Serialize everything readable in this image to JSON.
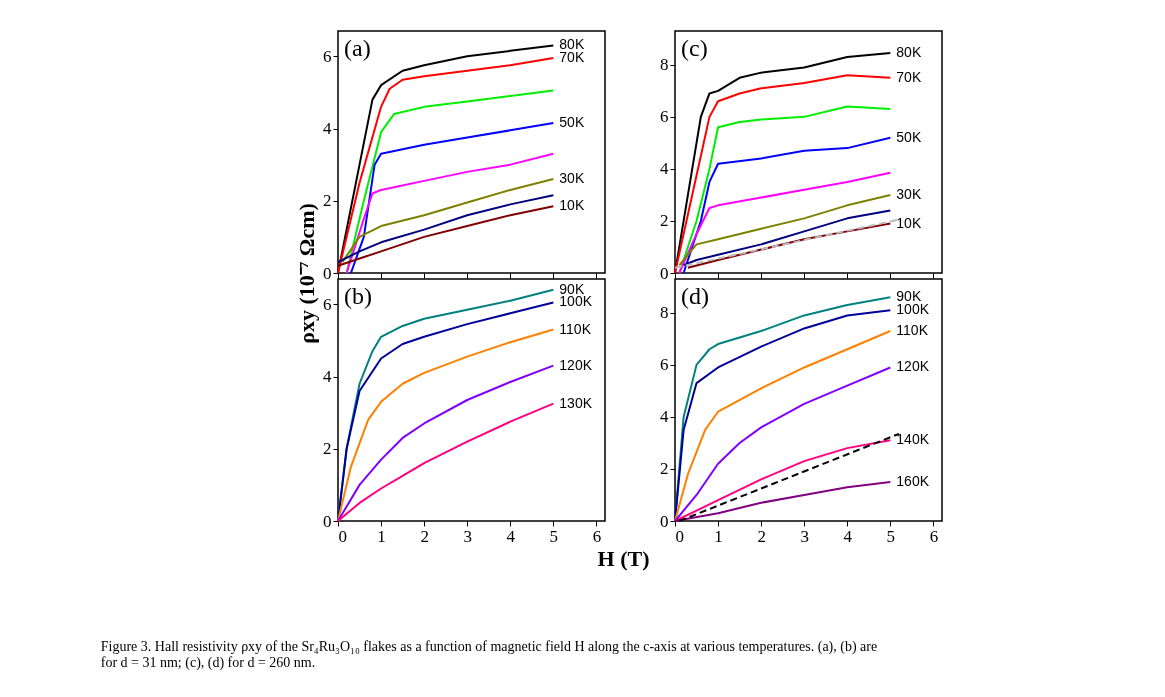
{
  "chart_data": [
    {
      "type": "line",
      "title": "(a)",
      "ylabel": "ρxy (10⁻⁷ Ωcm)",
      "xlim": [
        0,
        6.2
      ],
      "ylim": [
        0,
        6.7
      ],
      "xticks": [
        0,
        1,
        2,
        3,
        4,
        5,
        6
      ],
      "yticks": [
        0,
        2,
        4,
        6
      ],
      "tick_labels": "y",
      "series": [
        {
          "name": "80K",
          "color": "#000000",
          "x": [
            0,
            0.5,
            0.8,
            1,
            1.5,
            2,
            3,
            4,
            5
          ],
          "values": [
            0,
            3,
            4.8,
            5.2,
            5.6,
            5.75,
            6.0,
            6.15,
            6.3
          ]
        },
        {
          "name": "70K",
          "color": "#ff0000",
          "x": [
            0,
            0.5,
            1,
            1.2,
            1.5,
            2,
            3,
            4,
            5
          ],
          "values": [
            0,
            2.5,
            4.6,
            5.1,
            5.35,
            5.45,
            5.6,
            5.75,
            5.95
          ]
        },
        {
          "color": "#00ee00",
          "x": [
            0.2,
            0.6,
            1,
            1.3,
            2,
            3,
            4,
            5
          ],
          "values": [
            0,
            2,
            3.9,
            4.4,
            4.6,
            4.75,
            4.9,
            5.05
          ]
        },
        {
          "name": "50K",
          "color": "#0000ff",
          "x": [
            0.3,
            0.6,
            0.85,
            1,
            2,
            3,
            4,
            5
          ],
          "values": [
            0,
            1,
            3,
            3.3,
            3.55,
            3.75,
            3.95,
            4.15
          ]
        },
        {
          "color": "#ff00ff",
          "x": [
            0.2,
            0.6,
            0.8,
            1,
            2,
            3,
            4,
            5
          ],
          "values": [
            0,
            1.5,
            2.2,
            2.3,
            2.55,
            2.8,
            3.0,
            3.3
          ]
        },
        {
          "name": "30K",
          "color": "#808000",
          "x": [
            0.1,
            0.5,
            1,
            2,
            3,
            4,
            5
          ],
          "values": [
            0.3,
            1.0,
            1.3,
            1.6,
            1.95,
            2.3,
            2.6
          ]
        },
        {
          "color": "#000080",
          "x": [
            0,
            0.5,
            1,
            2,
            3,
            4,
            5
          ],
          "values": [
            0.3,
            0.6,
            0.85,
            1.2,
            1.6,
            1.9,
            2.15
          ]
        },
        {
          "name": "10K",
          "color": "#800000",
          "x": [
            0,
            0.5,
            1,
            2,
            3,
            4,
            5
          ],
          "values": [
            0.2,
            0.4,
            0.6,
            1.0,
            1.3,
            1.6,
            1.85
          ]
        }
      ]
    },
    {
      "type": "line",
      "title": "(b)",
      "xlabel": "H (T)",
      "xlim": [
        0,
        6.2
      ],
      "ylim": [
        0,
        6.7
      ],
      "xticks": [
        0,
        1,
        2,
        3,
        4,
        5,
        6
      ],
      "yticks": [
        0,
        2,
        4,
        6
      ],
      "series": [
        {
          "name": "90K",
          "color": "#008080",
          "x": [
            0,
            0.2,
            0.5,
            0.8,
            1,
            1.5,
            2,
            3,
            4,
            5
          ],
          "values": [
            0,
            2,
            3.8,
            4.7,
            5.1,
            5.4,
            5.6,
            5.85,
            6.1,
            6.4
          ]
        },
        {
          "name": "100K",
          "color": "#00009a",
          "x": [
            0,
            0.2,
            0.5,
            1,
            1.5,
            2,
            3,
            4,
            5
          ],
          "values": [
            0,
            2,
            3.6,
            4.5,
            4.9,
            5.1,
            5.45,
            5.75,
            6.05
          ]
        },
        {
          "name": "110K",
          "color": "#ff8000",
          "x": [
            0,
            0.3,
            0.7,
            1,
            1.5,
            2,
            3,
            4,
            5
          ],
          "values": [
            0,
            1.5,
            2.8,
            3.3,
            3.8,
            4.1,
            4.55,
            4.95,
            5.3
          ]
        },
        {
          "name": "120K",
          "color": "#8000ff",
          "x": [
            0,
            0.5,
            1,
            1.5,
            2,
            3,
            4,
            5
          ],
          "values": [
            0,
            1.0,
            1.7,
            2.3,
            2.7,
            3.35,
            3.85,
            4.3
          ]
        },
        {
          "name": "130K",
          "color": "#ff0080",
          "x": [
            0,
            0.5,
            1,
            1.5,
            2,
            3,
            4,
            5
          ],
          "values": [
            0,
            0.5,
            0.9,
            1.25,
            1.6,
            2.2,
            2.75,
            3.25
          ]
        }
      ]
    },
    {
      "type": "line",
      "title": "(c)",
      "xlim": [
        0,
        6.2
      ],
      "ylim": [
        0,
        9.3
      ],
      "xticks": [
        0,
        1,
        2,
        3,
        4,
        5,
        6
      ],
      "yticks": [
        0,
        2,
        4,
        6,
        8
      ],
      "tick_labels": "y",
      "series": [
        {
          "name": "80K",
          "color": "#000000",
          "x": [
            0,
            0.3,
            0.6,
            0.8,
            1,
            1.5,
            2,
            3,
            4,
            5
          ],
          "values": [
            0,
            3,
            6,
            6.9,
            7.0,
            7.5,
            7.7,
            7.9,
            8.3,
            8.45
          ]
        },
        {
          "name": "70K",
          "color": "#ff0000",
          "x": [
            0,
            0.4,
            0.8,
            1,
            1.5,
            2,
            3,
            4,
            5
          ],
          "values": [
            0,
            3,
            6,
            6.6,
            6.9,
            7.1,
            7.3,
            7.6,
            7.5
          ]
        },
        {
          "color": "#00ee00",
          "x": [
            0.1,
            0.5,
            0.8,
            1,
            1.5,
            2,
            3,
            4,
            5
          ],
          "values": [
            0,
            2,
            4,
            5.6,
            5.8,
            5.9,
            6.0,
            6.4,
            6.3
          ]
        },
        {
          "name": "50K",
          "color": "#0000ff",
          "x": [
            0.2,
            0.6,
            0.8,
            1,
            2,
            3,
            4,
            5
          ],
          "values": [
            0,
            2,
            3.5,
            4.2,
            4.4,
            4.7,
            4.8,
            5.2
          ]
        },
        {
          "color": "#ff00ff",
          "x": [
            0.1,
            0.5,
            0.8,
            1,
            2,
            3,
            4,
            5
          ],
          "values": [
            0,
            1.5,
            2.5,
            2.6,
            2.9,
            3.2,
            3.5,
            3.85
          ]
        },
        {
          "name": "30K",
          "color": "#808000",
          "x": [
            0.1,
            0.5,
            1,
            2,
            3,
            4,
            5
          ],
          "values": [
            0.3,
            1.1,
            1.3,
            1.7,
            2.1,
            2.6,
            3.0
          ]
        },
        {
          "color": "#000080",
          "x": [
            0.2,
            0.5,
            1,
            2,
            3,
            4,
            5
          ],
          "values": [
            0.3,
            0.5,
            0.7,
            1.1,
            1.6,
            2.1,
            2.4
          ]
        },
        {
          "name": "10K",
          "color": "#800000",
          "x": [
            0.3,
            1,
            2,
            3,
            4,
            5
          ],
          "values": [
            0.2,
            0.5,
            0.9,
            1.3,
            1.6,
            1.9
          ]
        },
        {
          "type": "line",
          "line_style": "dashed",
          "color": "#bbbbbb",
          "x": [
            0,
            5.2
          ],
          "values": [
            0.2,
            2.05
          ]
        }
      ]
    },
    {
      "type": "line",
      "title": "(d)",
      "xlim": [
        0,
        6.2
      ],
      "ylim": [
        0,
        9.3
      ],
      "xticks": [
        0,
        1,
        2,
        3,
        4,
        5,
        6
      ],
      "yticks": [
        0,
        2,
        4,
        6,
        8
      ],
      "series": [
        {
          "name": "90K",
          "color": "#008080",
          "x": [
            0,
            0.2,
            0.5,
            0.8,
            1,
            2,
            3,
            4,
            5
          ],
          "values": [
            0,
            4,
            6,
            6.6,
            6.8,
            7.3,
            7.9,
            8.3,
            8.6
          ]
        },
        {
          "name": "100K",
          "color": "#00009a",
          "x": [
            0,
            0.2,
            0.5,
            1,
            2,
            3,
            4,
            5
          ],
          "values": [
            0,
            3.5,
            5.3,
            5.9,
            6.7,
            7.4,
            7.9,
            8.1
          ]
        },
        {
          "name": "110K",
          "color": "#ff8000",
          "x": [
            0,
            0.3,
            0.7,
            1,
            2,
            3,
            4,
            5
          ],
          "values": [
            0,
            1.8,
            3.5,
            4.2,
            5.1,
            5.9,
            6.6,
            7.3
          ]
        },
        {
          "name": "120K",
          "color": "#8000ff",
          "x": [
            0,
            0.5,
            1,
            1.5,
            2,
            3,
            4,
            5
          ],
          "values": [
            0,
            1,
            2.2,
            3,
            3.6,
            4.5,
            5.2,
            5.9
          ]
        },
        {
          "name": "140K",
          "color": "#ff0080",
          "x": [
            0,
            0.5,
            1,
            2,
            3,
            4,
            5
          ],
          "values": [
            0,
            0.4,
            0.8,
            1.6,
            2.3,
            2.8,
            3.1
          ]
        },
        {
          "name": "160K",
          "color": "#800080",
          "x": [
            0,
            1,
            2,
            3,
            4,
            5
          ],
          "values": [
            0,
            0.3,
            0.7,
            1.0,
            1.3,
            1.5
          ]
        },
        {
          "type": "line",
          "line_style": "dashed",
          "color": "#000000",
          "x": [
            0.1,
            5.2
          ],
          "values": [
            0,
            3.35
          ]
        }
      ],
      "annotations": [
        "Figure 3. Hall resistivity ρxy of the Sr₄Ru₃O₁₀ flakes as a function of magnetic field H along the c-axis at various temperatures. (a), (b) are for d = 31 nm; (c), (d) for d = 260 nm."
      ]
    }
  ]
}
